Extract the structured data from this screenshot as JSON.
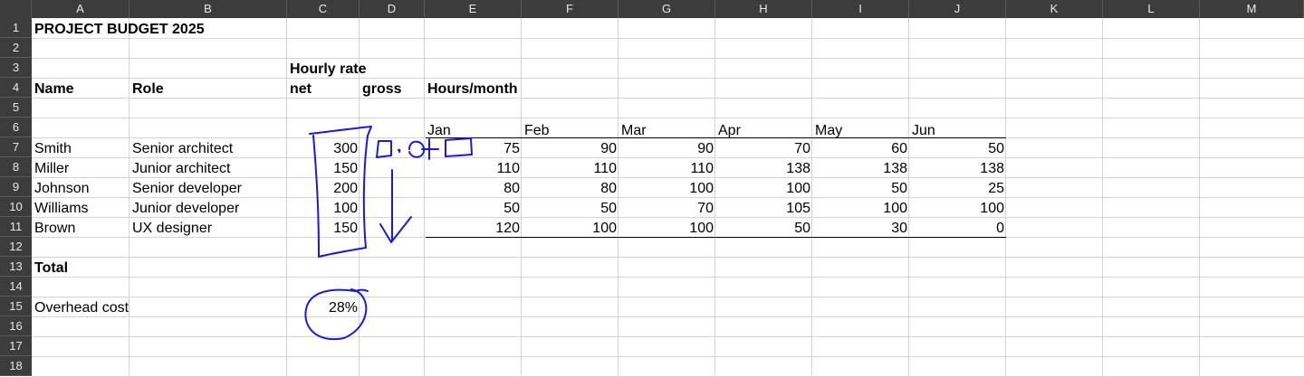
{
  "columns": [
    "A",
    "B",
    "C",
    "D",
    "E",
    "F",
    "G",
    "H",
    "I",
    "J",
    "K",
    "L",
    "M"
  ],
  "rows": [
    "1",
    "2",
    "3",
    "4",
    "5",
    "6",
    "7",
    "8",
    "9",
    "10",
    "11",
    "12",
    "13",
    "14",
    "15",
    "16",
    "17",
    "18"
  ],
  "title": "PROJECT BUDGET 2025",
  "headers": {
    "hourly_rate": "Hourly rate",
    "name": "Name",
    "role": "Role",
    "net": "net",
    "gross": "gross",
    "hours_month": "Hours/month"
  },
  "months": [
    "Jan",
    "Feb",
    "Mar",
    "Apr",
    "May",
    "Jun"
  ],
  "people": [
    {
      "name": "Smith",
      "role": "Senior architect",
      "net": "300",
      "hours": [
        "75",
        "90",
        "90",
        "70",
        "60",
        "50"
      ]
    },
    {
      "name": "Miller",
      "role": "Junior architect",
      "net": "150",
      "hours": [
        "110",
        "110",
        "110",
        "138",
        "138",
        "138"
      ]
    },
    {
      "name": "Johnson",
      "role": "Senior developer",
      "net": "200",
      "hours": [
        "80",
        "80",
        "100",
        "100",
        "50",
        "25"
      ]
    },
    {
      "name": "Williams",
      "role": "Junior developer",
      "net": "100",
      "hours": [
        "50",
        "50",
        "70",
        "105",
        "100",
        "100"
      ]
    },
    {
      "name": "Brown",
      "role": "UX designer",
      "net": "150",
      "hours": [
        "120",
        "100",
        "100",
        "50",
        "30",
        "0"
      ]
    }
  ],
  "total_label": "Total",
  "overhead": {
    "label": "Overhead cost",
    "value": "28%"
  },
  "annotation_color": "#1a1adc",
  "colors": {
    "header_bg": "#3c3c3c",
    "header_text": "#e8e8e8",
    "grid": "#d4d4d4"
  }
}
